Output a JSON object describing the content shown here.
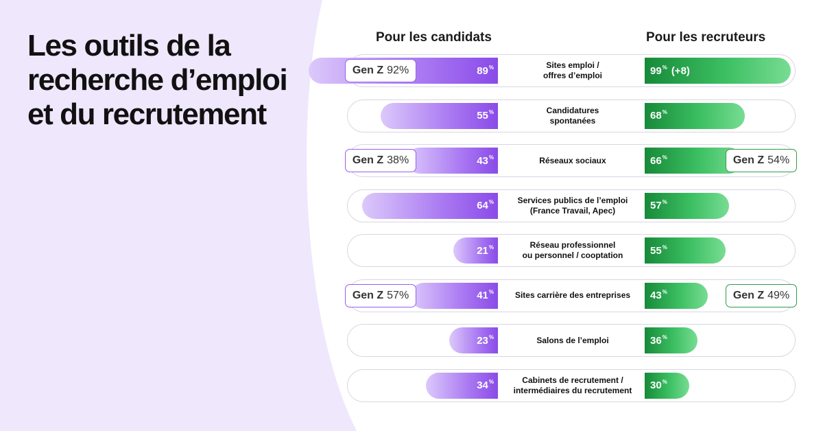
{
  "title": "Les outils de la recherche d’emploi et du recrutement",
  "colors": {
    "purple": "#8a4be8",
    "green": "#178a39",
    "background": "#efe7fc"
  },
  "chart_data": {
    "type": "bar",
    "orientation": "horizontal-diverging",
    "left_series": "Pour les candidats",
    "right_series": "Pour les recruteurs",
    "unit": "%",
    "rows": [
      {
        "category": [
          "Sites emploi /",
          "offres d’emploi"
        ],
        "candidats": 89,
        "recruteurs": 99,
        "recruteurs_extra": "(+8)",
        "genz_candidats": 92,
        "genz_recruteurs": null
      },
      {
        "category": [
          "Candidatures",
          "spontanées"
        ],
        "candidats": 55,
        "recruteurs": 68,
        "recruteurs_extra": "",
        "genz_candidats": null,
        "genz_recruteurs": null
      },
      {
        "category": [
          "Réseaux sociaux"
        ],
        "candidats": 43,
        "recruteurs": 66,
        "recruteurs_extra": "",
        "genz_candidats": 38,
        "genz_recruteurs": 54
      },
      {
        "category": [
          "Services publics de l’emploi",
          "(France Travail, Apec)"
        ],
        "candidats": 64,
        "recruteurs": 57,
        "recruteurs_extra": "",
        "genz_candidats": null,
        "genz_recruteurs": null
      },
      {
        "category": [
          "Réseau professionnel",
          "ou personnel / cooptation"
        ],
        "candidats": 21,
        "recruteurs": 55,
        "recruteurs_extra": "",
        "genz_candidats": null,
        "genz_recruteurs": null
      },
      {
        "category": [
          "Sites carrière des entreprises"
        ],
        "candidats": 41,
        "recruteurs": 43,
        "recruteurs_extra": "",
        "genz_candidats": 57,
        "genz_recruteurs": 49
      },
      {
        "category": [
          "Salons de l’emploi"
        ],
        "candidats": 23,
        "recruteurs": 36,
        "recruteurs_extra": "",
        "genz_candidats": null,
        "genz_recruteurs": null
      },
      {
        "category": [
          "Cabinets de recrutement /",
          "intermédiaires du recrutement"
        ],
        "candidats": 34,
        "recruteurs": 30,
        "recruteurs_extra": "",
        "genz_candidats": null,
        "genz_recruteurs": null
      }
    ],
    "genz_label": "Gen Z"
  }
}
